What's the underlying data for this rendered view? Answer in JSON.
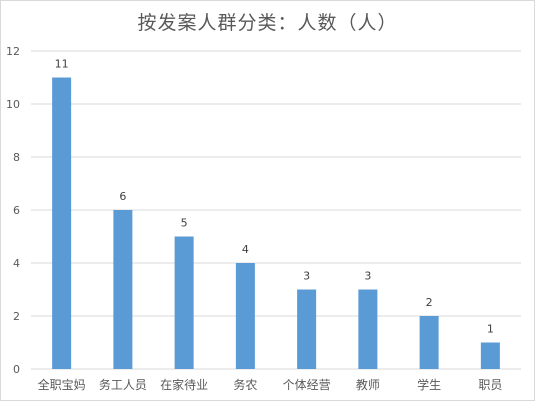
{
  "chart_data": {
    "type": "bar",
    "title": "按发案人群分类：人数（人）",
    "categories": [
      "全职宝妈",
      "务工人员",
      "在家待业",
      "务农",
      "个体经营",
      "教师",
      "学生",
      "职员"
    ],
    "values": [
      11,
      6,
      5,
      4,
      3,
      3,
      2,
      1
    ],
    "ylim": [
      0,
      12
    ],
    "yticks": [
      0,
      2,
      4,
      6,
      8,
      10,
      12
    ],
    "xlabel": "",
    "ylabel": "",
    "grid": true,
    "legend": "none",
    "bar_color": "#5b9bd5",
    "grid_color": "#d9d9d9"
  }
}
